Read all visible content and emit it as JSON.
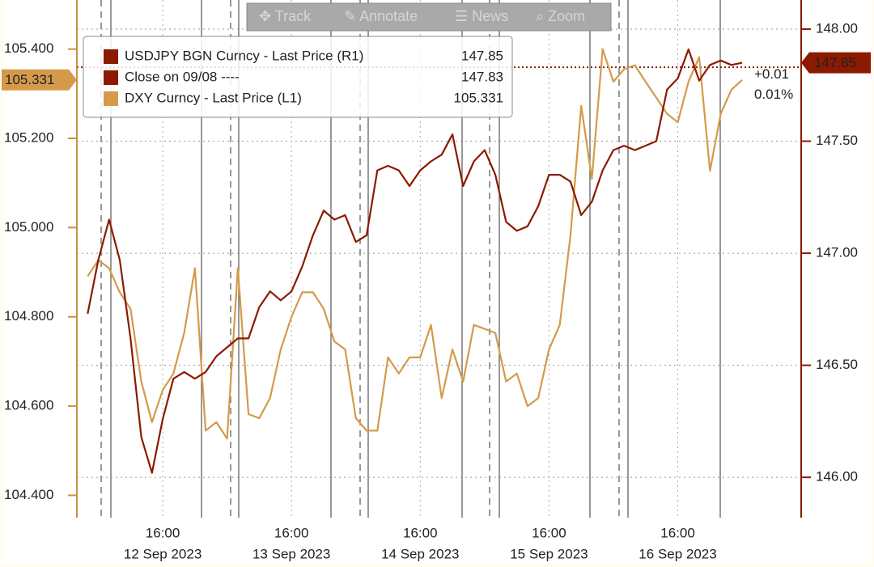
{
  "toolbar": [
    "Track",
    "Annotate",
    "News",
    "Zoom"
  ],
  "chart_data": {
    "type": "line",
    "x": [
      "2023-09-12T02:00",
      "2023-09-12T04:00",
      "2023-09-12T06:00",
      "2023-09-12T08:00",
      "2023-09-12T10:00",
      "2023-09-12T12:00",
      "2023-09-12T14:00",
      "2023-09-12T16:00",
      "2023-09-12T18:00",
      "2023-09-12T20:00",
      "2023-09-12T22:00",
      "2023-09-13T00:00",
      "2023-09-13T02:00",
      "2023-09-13T04:00",
      "2023-09-13T06:00",
      "2023-09-13T08:00",
      "2023-09-13T10:00",
      "2023-09-13T12:00",
      "2023-09-13T14:00",
      "2023-09-13T16:00",
      "2023-09-13T18:00",
      "2023-09-13T20:00",
      "2023-09-13T22:00",
      "2023-09-14T00:00",
      "2023-09-14T02:00",
      "2023-09-14T04:00",
      "2023-09-14T06:00",
      "2023-09-14T08:00",
      "2023-09-14T10:00",
      "2023-09-14T12:00",
      "2023-09-14T14:00",
      "2023-09-14T16:00",
      "2023-09-14T18:00",
      "2023-09-14T20:00",
      "2023-09-14T22:00",
      "2023-09-15T00:00",
      "2023-09-15T02:00",
      "2023-09-15T04:00",
      "2023-09-15T06:00",
      "2023-09-15T08:00",
      "2023-09-15T10:00",
      "2023-09-15T12:00",
      "2023-09-15T14:00",
      "2023-09-15T16:00",
      "2023-09-15T18:00",
      "2023-09-15T20:00",
      "2023-09-15T22:00",
      "2023-09-16T00:00",
      "2023-09-16T02:00",
      "2023-09-16T04:00",
      "2023-09-16T06:00",
      "2023-09-16T08:00",
      "2023-09-16T10:00",
      "2023-09-16T12:00",
      "2023-09-16T14:00",
      "2023-09-16T16:00",
      "2023-09-16T18:00",
      "2023-09-16T20:00",
      "2023-09-16T22:00",
      "2023-09-17T00:00",
      "2023-09-17T02:00",
      "2023-09-17T04:00"
    ],
    "series": [
      {
        "name": "USDJPY BGN Curncy - Last Price (R1)",
        "color": "#8b1a00",
        "axis": "y2",
        "values": [
          146.73,
          146.97,
          147.15,
          146.97,
          146.62,
          146.18,
          146.02,
          146.26,
          146.44,
          146.47,
          146.44,
          146.47,
          146.54,
          146.58,
          146.62,
          146.62,
          146.76,
          146.83,
          146.79,
          146.83,
          146.94,
          147.08,
          147.19,
          147.15,
          147.17,
          147.05,
          147.08,
          147.37,
          147.39,
          147.37,
          147.3,
          147.37,
          147.41,
          147.44,
          147.53,
          147.3,
          147.41,
          147.46,
          147.35,
          147.14,
          147.1,
          147.12,
          147.21,
          147.35,
          147.35,
          147.32,
          147.17,
          147.23,
          147.37,
          147.46,
          147.48,
          147.46,
          147.48,
          147.5,
          147.73,
          147.78,
          147.91,
          147.77,
          147.84,
          147.86,
          147.84,
          147.85
        ]
      },
      {
        "name": "DXY Curncy - Last Price (L1)",
        "color": "#d49a4a",
        "values": [
          104.891,
          104.927,
          104.909,
          104.855,
          104.818,
          104.655,
          104.564,
          104.636,
          104.673,
          104.764,
          104.909,
          104.545,
          104.564,
          104.527,
          104.909,
          104.582,
          104.573,
          104.618,
          104.727,
          104.8,
          104.855,
          104.855,
          104.818,
          104.745,
          104.727,
          104.573,
          104.545,
          104.545,
          104.709,
          104.673,
          104.709,
          104.709,
          104.782,
          104.618,
          104.727,
          104.655,
          104.782,
          104.773,
          104.764,
          104.655,
          104.673,
          104.6,
          104.618,
          104.727,
          104.782,
          104.982,
          105.273,
          105.109,
          105.4,
          105.327,
          105.355,
          105.364,
          105.327,
          105.291,
          105.255,
          105.236,
          105.327,
          105.382,
          105.127,
          105.255,
          105.309,
          105.331
        ]
      }
    ],
    "close": {
      "name": "Close on 09/08 ----",
      "value": 147.83
    },
    "annotations": [
      "+0.01",
      "0.01%"
    ],
    "xlim": [
      "2023-09-12T00:00",
      "2023-09-17T15:00"
    ],
    "xticks": [
      {
        "value": "2023-09-12T16:00",
        "label": "16:00",
        "date": "12 Sep 2023"
      },
      {
        "value": "2023-09-13T16:00",
        "label": "16:00",
        "date": "13 Sep 2023"
      },
      {
        "value": "2023-09-14T16:00",
        "label": "16:00",
        "date": "14 Sep 2023"
      },
      {
        "value": "2023-09-15T16:00",
        "label": "16:00",
        "date": "15 Sep 2023"
      },
      {
        "value": "2023-09-16T16:00",
        "label": "16:00",
        "date": "16 Sep 2023"
      }
    ],
    "ylim": [
      104.35,
      105.51
    ],
    "yticks": [
      {
        "value": 104.4,
        "label": "104.400"
      },
      {
        "value": 104.6,
        "label": "104.600"
      },
      {
        "value": 104.8,
        "label": "104.800"
      },
      {
        "value": 105,
        "label": "105.000"
      },
      {
        "value": 105.2,
        "label": "105.200"
      },
      {
        "value": 105.4,
        "label": "105.400"
      }
    ],
    "y2lim": [
      145.82,
      148.13
    ],
    "y2ticks": [
      {
        "value": 146,
        "label": "146.00"
      },
      {
        "value": 146.5,
        "label": "146.50"
      },
      {
        "value": 147,
        "label": "147.00"
      },
      {
        "value": 147.5,
        "label": "147.50"
      },
      {
        "value": 148,
        "label": "148.00"
      }
    ],
    "grid": true
  }
}
